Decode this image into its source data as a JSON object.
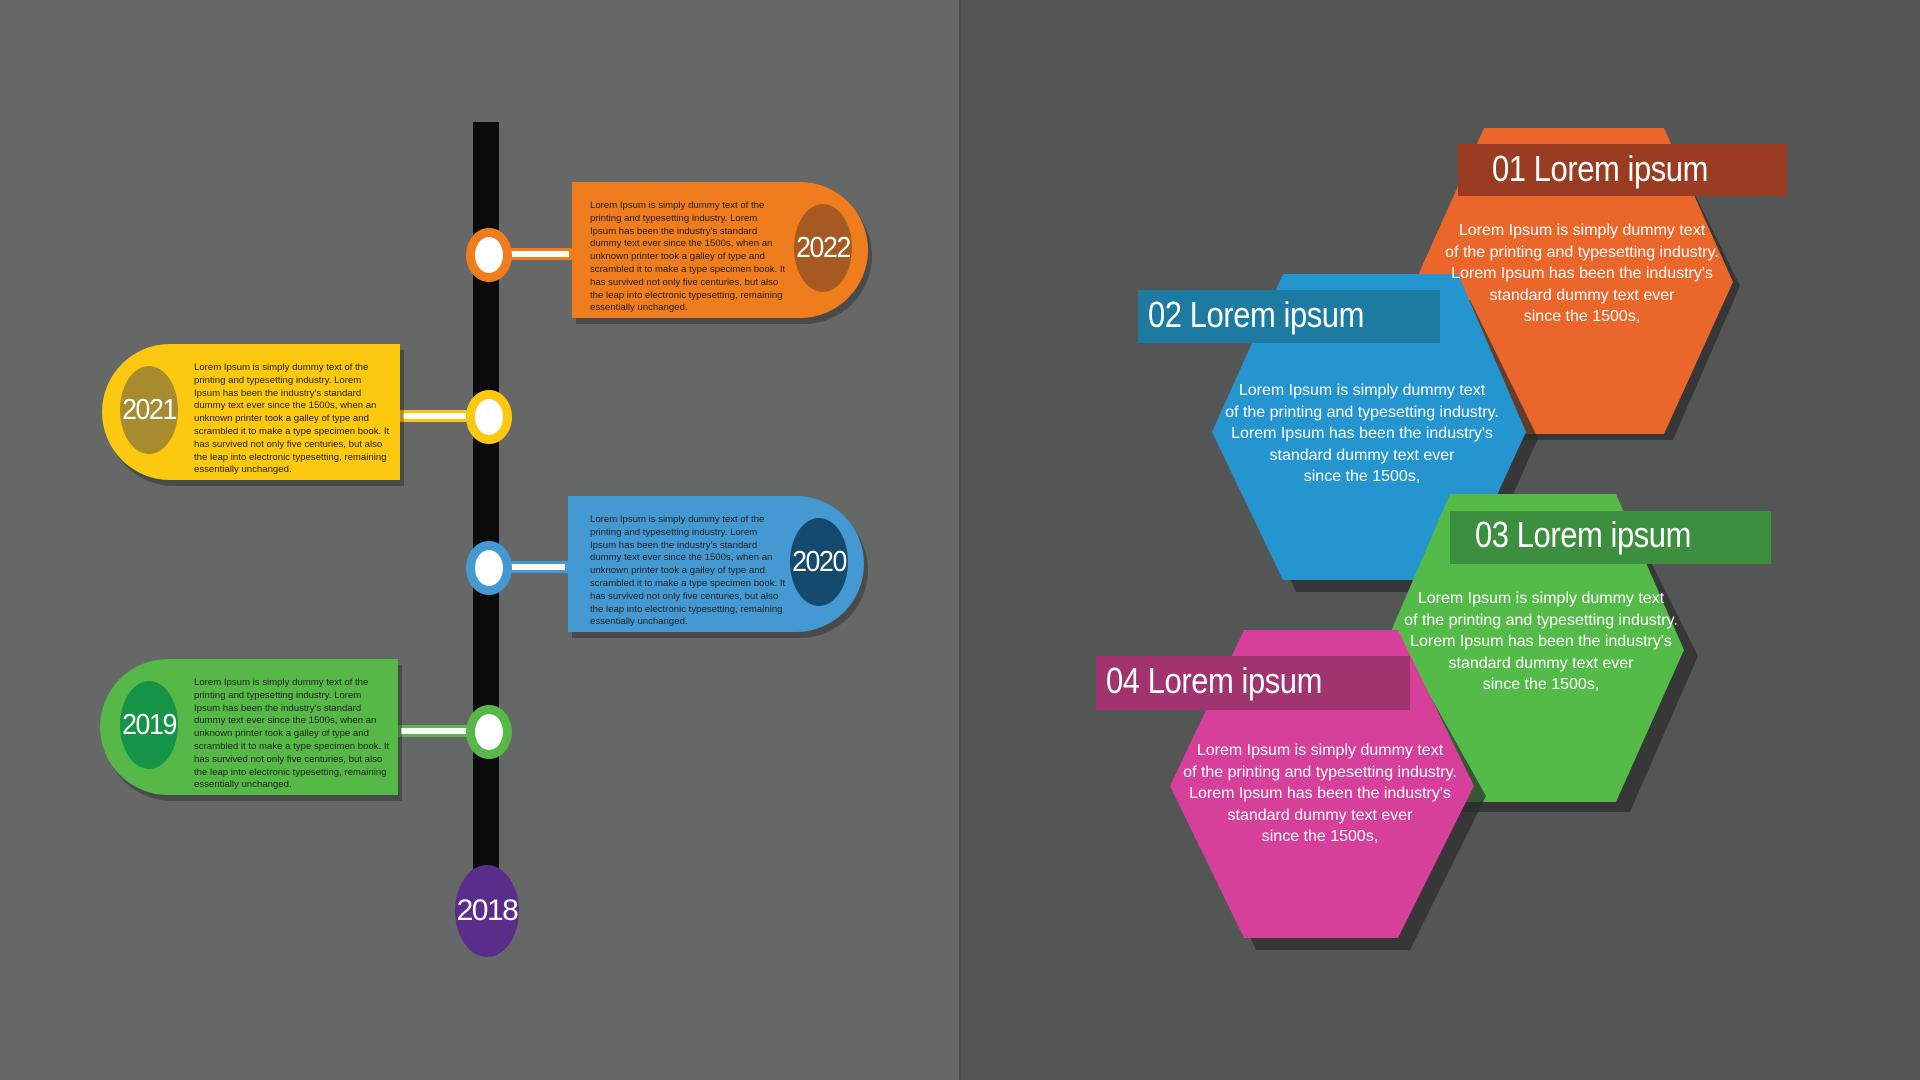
{
  "timeline": {
    "start_year": "2018",
    "items": [
      {
        "year": "2022",
        "color": "#f07d1d",
        "dark": "#a65a22",
        "text": "Lorem Ipsum is simply dummy text of the printing and typesetting industry. Lorem Ipsum has been the industry's standard dummy text ever since the 1500s, when an unknown printer took a galley of type and scrambled it to make a type specimen book. It has survived not only five centuries, but also the leap into electronic typesetting, remaining essentially unchanged."
      },
      {
        "year": "2021",
        "color": "#fcc910",
        "dark": "#a88a2f",
        "text": "Lorem Ipsum is simply dummy text of the printing and typesetting industry. Lorem Ipsum has been the industry's standard dummy text ever since the 1500s, when an unknown printer took a galley of type and scrambled it to make a type specimen book. It has survived not only five centuries, but also the leap into electronic typesetting, remaining essentially unchanged."
      },
      {
        "year": "2020",
        "color": "#4499d3",
        "dark": "#144a6e",
        "text": "Lorem Ipsum is simply dummy text of the printing and typesetting industry. Lorem Ipsum has been the industry's standard dummy text ever since the 1500s, when an unknown printer took a galley of type and scrambled it to make a type specimen book. It has survived not only five centuries, but also the leap into electronic typesetting, remaining essentially unchanged."
      },
      {
        "year": "2019",
        "color": "#55b847",
        "dark": "#159447",
        "text": "Lorem Ipsum is simply dummy text of the printing and typesetting industry. Lorem Ipsum has been the industry's standard dummy text ever since the 1500s, when an unknown printer took a galley of type and scrambled it to make a type specimen book. It has survived not only five centuries, but also the leap into electronic typesetting, remaining essentially unchanged."
      }
    ]
  },
  "hexagons": [
    {
      "title": "01 Lorem ipsum",
      "color": "#ea662b",
      "banner": "#9a3c22",
      "lines": [
        "Lorem Ipsum is simply dummy text",
        "of the printing and typesetting industry.",
        "Lorem Ipsum has been the industry's",
        "standard dummy text ever",
        "since the 1500s,"
      ]
    },
    {
      "title": "02 Lorem ipsum",
      "color": "#2595d0",
      "banner": "#1d7aa0",
      "lines": [
        "Lorem Ipsum is simply dummy text",
        "of the printing and typesetting industry.",
        "Lorem Ipsum has been the industry's",
        "standard dummy text ever",
        "since the 1500s,"
      ]
    },
    {
      "title": "03 Lorem ipsum",
      "color": "#54bb48",
      "banner": "#3b8f3f",
      "lines": [
        "Lorem Ipsum is simply dummy text",
        "of the printing and typesetting industry.",
        "Lorem Ipsum has been the industry's",
        "standard dummy text ever",
        "since the 1500s,"
      ]
    },
    {
      "title": "04 Lorem ipsum",
      "color": "#d6409a",
      "banner": "#a1336f",
      "lines": [
        "Lorem Ipsum is simply dummy text",
        "of the printing and typesetting industry.",
        "Lorem Ipsum has been the industry's",
        "standard dummy text ever",
        "since the 1500s,"
      ]
    }
  ]
}
